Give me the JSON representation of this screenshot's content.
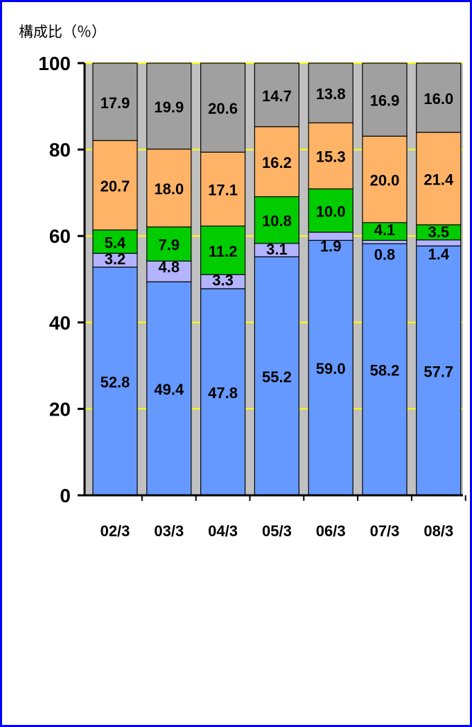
{
  "chart_data": {
    "type": "bar",
    "stacked": true,
    "title": "",
    "ylabel": "構成比（％）",
    "xlabel": "",
    "ylim": [
      0,
      100
    ],
    "yticks": [
      0,
      20,
      40,
      60,
      80,
      100
    ],
    "grid": true,
    "legend": "none",
    "categories": [
      "02/3",
      "03/3",
      "04/3",
      "05/3",
      "06/3",
      "07/3",
      "08/3"
    ],
    "series": [
      {
        "color": "#6699ff",
        "values": [
          52.8,
          49.4,
          47.8,
          55.2,
          59.0,
          58.2,
          57.7
        ],
        "labels": [
          "52.8",
          "49.4",
          "47.8",
          "55.2",
          "59.0",
          "58.2",
          "57.7"
        ]
      },
      {
        "color": "#b3b3ff",
        "values": [
          3.2,
          4.8,
          3.3,
          3.1,
          1.9,
          0.8,
          1.4
        ],
        "labels": [
          "3.2",
          "4.8",
          "3.3",
          "3.1",
          "1.9",
          "0.8",
          "1.4"
        ]
      },
      {
        "color": "#00cc00",
        "values": [
          5.4,
          7.9,
          11.2,
          10.8,
          10.0,
          4.1,
          3.5
        ],
        "labels": [
          "5.4",
          "7.9",
          "11.2",
          "10.8",
          "10.0",
          "4.1",
          "3.5"
        ]
      },
      {
        "color": "#ffb366",
        "values": [
          20.7,
          18.0,
          17.1,
          16.2,
          15.3,
          20.0,
          21.4
        ],
        "labels": [
          "20.7",
          "18.0",
          "17.1",
          "16.2",
          "15.3",
          "20.0",
          "21.4"
        ]
      },
      {
        "color": "#a0a0a0",
        "values": [
          17.9,
          19.9,
          20.6,
          14.7,
          13.8,
          16.9,
          16.0
        ],
        "labels": [
          "17.9",
          "19.9",
          "20.6",
          "14.7",
          "13.8",
          "16.9",
          "16.0"
        ]
      }
    ],
    "colors": {
      "plot_background": "#c0c0c0",
      "gridline": "#ffff00",
      "frame": "#0000ff"
    }
  }
}
